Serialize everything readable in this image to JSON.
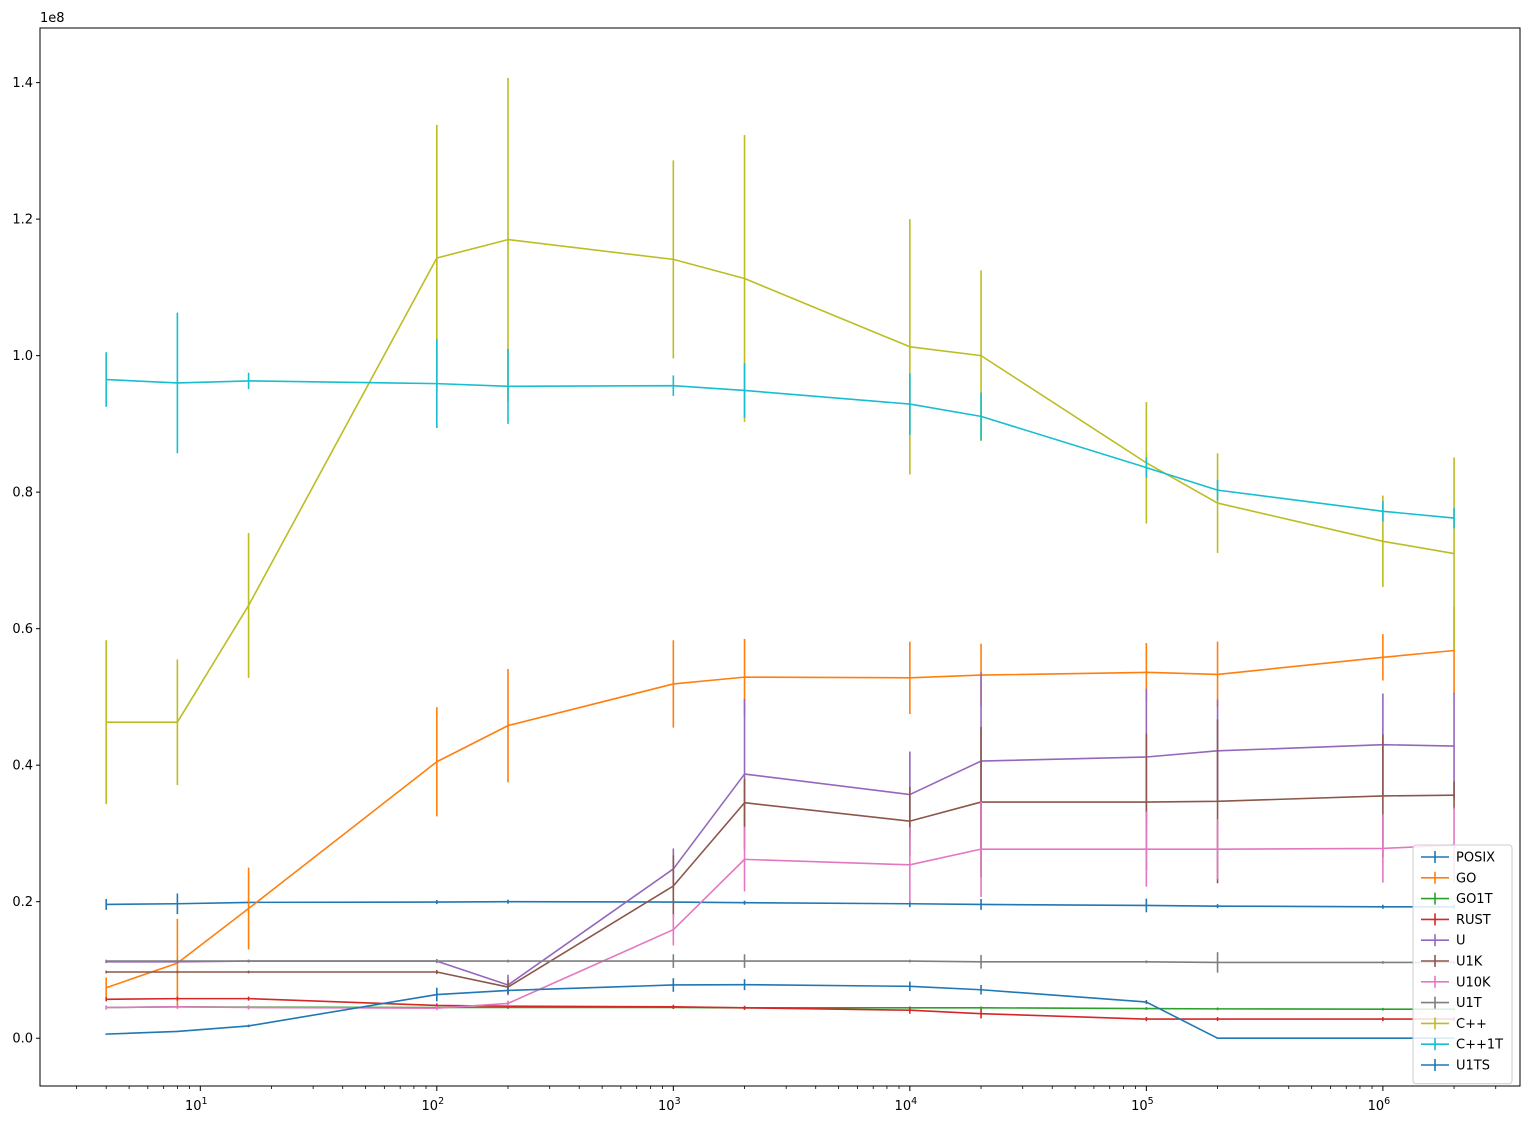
{
  "chart_data": {
    "type": "line",
    "title": "",
    "xlabel": "",
    "ylabel": "",
    "x_scale": "log",
    "xlim": [
      2.1,
      3800000
    ],
    "ylim": [
      -7000000,
      148000000
    ],
    "y_multiplier_label": "1e8",
    "grid": false,
    "legend_position": "lower-right",
    "x": [
      4,
      8,
      16,
      100,
      200,
      1000,
      2000,
      10000,
      20000,
      100000,
      200000,
      1000000,
      2000000
    ],
    "x_ticks": [
      {
        "value": 10,
        "base": "10",
        "exp": "1"
      },
      {
        "value": 100,
        "base": "10",
        "exp": "2"
      },
      {
        "value": 1000,
        "base": "10",
        "exp": "3"
      },
      {
        "value": 10000,
        "base": "10",
        "exp": "4"
      },
      {
        "value": 100000,
        "base": "10",
        "exp": "5"
      },
      {
        "value": 1000000,
        "base": "10",
        "exp": "6"
      }
    ],
    "y_ticks": [
      {
        "value": 0,
        "label": "0.0"
      },
      {
        "value": 20000000,
        "label": "0.2"
      },
      {
        "value": 40000000,
        "label": "0.4"
      },
      {
        "value": 60000000,
        "label": "0.6"
      },
      {
        "value": 80000000,
        "label": "0.8"
      },
      {
        "value": 100000000,
        "label": "1.0"
      },
      {
        "value": 120000000,
        "label": "1.2"
      },
      {
        "value": 140000000,
        "label": "1.4"
      }
    ],
    "series": [
      {
        "name": "POSIX",
        "color": "#1f77b4",
        "y": [
          19600000,
          19700000,
          19900000,
          19950000,
          20000000,
          19950000,
          19850000,
          19700000,
          19600000,
          19450000,
          19350000,
          19250000,
          19250000
        ],
        "err": [
          800000,
          1500000,
          300000,
          300000,
          300000,
          300000,
          300000,
          500000,
          800000,
          1000000,
          300000,
          300000,
          300000
        ]
      },
      {
        "name": "GO",
        "color": "#ff7f0e",
        "y": [
          7400000,
          11000000,
          19000000,
          40500000,
          45800000,
          51900000,
          52900000,
          52800000,
          53200000,
          53600000,
          53300000,
          55800000,
          56800000
        ],
        "err": [
          1500000,
          6500000,
          6000000,
          8000000,
          8300000,
          6400000,
          5600000,
          5300000,
          4600000,
          4300000,
          4800000,
          3400000,
          6400000
        ]
      },
      {
        "name": "GO1T",
        "color": "#2ca02c",
        "y": [
          4500000,
          4600000,
          4550000,
          4500000,
          4500000,
          4500000,
          4450000,
          4450000,
          4450000,
          4350000,
          4300000,
          4250000,
          4250000
        ],
        "err": [
          200000,
          200000,
          200000,
          200000,
          200000,
          200000,
          200000,
          200000,
          200000,
          200000,
          200000,
          200000,
          200000
        ]
      },
      {
        "name": "RUST",
        "color": "#d62728",
        "y": [
          5700000,
          5800000,
          5800000,
          4800000,
          4700000,
          4600000,
          4450000,
          4100000,
          3600000,
          2800000,
          2800000,
          2800000,
          2800000
        ],
        "err": [
          300000,
          300000,
          300000,
          300000,
          300000,
          300000,
          300000,
          500000,
          700000,
          300000,
          300000,
          300000,
          300000
        ]
      },
      {
        "name": "U",
        "color": "#9467bd",
        "y": [
          11200000,
          11200000,
          11300000,
          11300000,
          7800000,
          24800000,
          38700000,
          35700000,
          40600000,
          41200000,
          42100000,
          43000000,
          42800000
        ],
        "err": [
          200000,
          200000,
          200000,
          300000,
          1500000,
          3000000,
          11000000,
          6300000,
          13000000,
          10000000,
          7500000,
          7500000,
          7800000
        ]
      },
      {
        "name": "U1K",
        "color": "#8c564b",
        "y": [
          9700000,
          9700000,
          9700000,
          9700000,
          7500000,
          22300000,
          34500000,
          31800000,
          34600000,
          34600000,
          34700000,
          35500000,
          35600000
        ],
        "err": [
          200000,
          200000,
          200000,
          300000,
          1000000,
          4500000,
          3500000,
          5000000,
          11000000,
          10000000,
          12000000,
          9000000,
          2000000
        ]
      },
      {
        "name": "U10K",
        "color": "#e377c2",
        "y": [
          4500000,
          4600000,
          4500000,
          4400000,
          5100000,
          15900000,
          26200000,
          25400000,
          27700000,
          27700000,
          27700000,
          27800000,
          28300000
        ],
        "err": [
          300000,
          300000,
          300000,
          300000,
          400000,
          2300000,
          4700000,
          5500000,
          7000000,
          5500000,
          4400000,
          5000000,
          5500000
        ]
      },
      {
        "name": "U1T",
        "color": "#7f7f7f",
        "y": [
          11300000,
          11300000,
          11300000,
          11300000,
          11300000,
          11300000,
          11300000,
          11300000,
          11200000,
          11200000,
          11100000,
          11100000,
          11100000
        ],
        "err": [
          200000,
          200000,
          200000,
          200000,
          200000,
          1000000,
          1000000,
          200000,
          1000000,
          200000,
          1500000,
          200000,
          200000
        ]
      },
      {
        "name": "C++",
        "color": "#bcbd22",
        "y": [
          46300000,
          46300000,
          63400000,
          114300000,
          117000000,
          114100000,
          111300000,
          101300000,
          100000000,
          84300000,
          78400000,
          72800000,
          71000000
        ],
        "err": [
          12000000,
          9200000,
          10600000,
          19500000,
          23700000,
          14500000,
          21000000,
          18700000,
          12500000,
          8900000,
          7300000,
          6700000,
          14100000
        ]
      },
      {
        "name": "C++1T",
        "color": "#17becf",
        "y": [
          96500000,
          96000000,
          96300000,
          95900000,
          95500000,
          95600000,
          94900000,
          92900000,
          91100000,
          83600000,
          80300000,
          77200000,
          76200000
        ],
        "err": [
          4000000,
          10300000,
          1200000,
          6500000,
          5500000,
          1500000,
          4000000,
          4500000,
          3500000,
          1500000,
          1500000,
          1500000,
          1500000
        ]
      },
      {
        "name": "U1TS",
        "color": "#1f77b4",
        "y": [
          600000,
          1000000,
          1800000,
          6400000,
          7000000,
          7800000,
          7850000,
          7600000,
          7100000,
          5300000,
          0,
          0,
          0
        ],
        "err": [
          100000,
          100000,
          200000,
          1000000,
          500000,
          1000000,
          800000,
          700000,
          700000,
          300000,
          100000,
          100000,
          100000
        ]
      }
    ]
  }
}
